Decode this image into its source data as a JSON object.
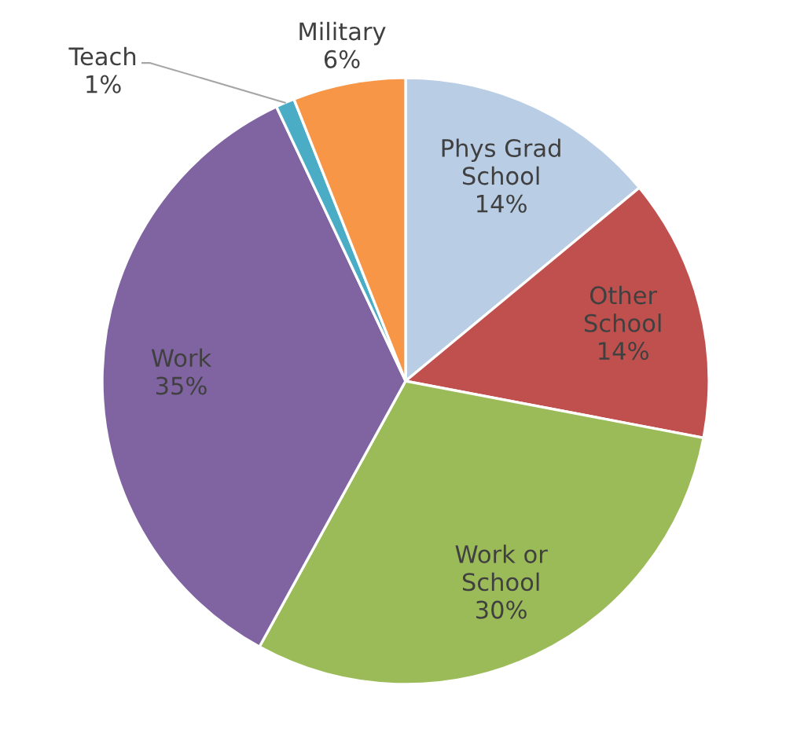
{
  "chart_data": {
    "type": "pie",
    "categories": [
      "Phys Grad\nSchool",
      "Other\nSchool",
      "Work or\nSchool",
      "Work",
      "Teach",
      "Military"
    ],
    "values": [
      14,
      14,
      30,
      35,
      1,
      6
    ],
    "colors": [
      "#b9cde5",
      "#c0504d",
      "#9bbb59",
      "#8064a2",
      "#4bacc6",
      "#f79646"
    ],
    "value_labels": [
      "14%",
      "14%",
      "30%",
      "35%",
      "1%",
      "6%"
    ],
    "legend": false
  }
}
